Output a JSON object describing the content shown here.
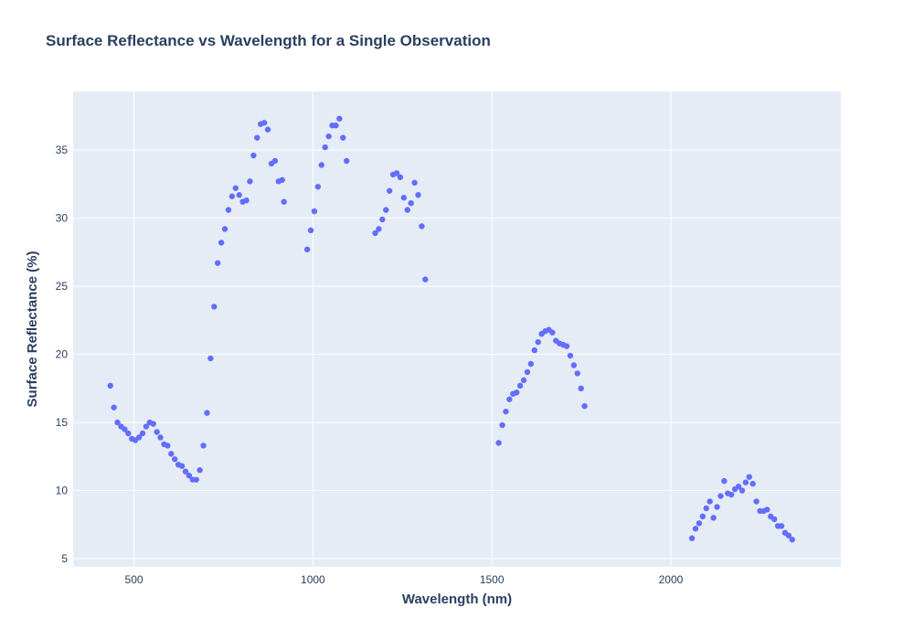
{
  "chart_data": {
    "type": "scatter",
    "title": "Surface Reflectance vs Wavelength for a Single Observation",
    "xlabel": "Wavelength (nm)",
    "ylabel": "Surface Reflectance (%)",
    "xlim": [
      330,
      2475
    ],
    "ylim": [
      4.4,
      39.3
    ],
    "xticks": [
      500,
      1000,
      1500,
      2000
    ],
    "yticks": [
      5,
      10,
      15,
      20,
      25,
      30,
      35
    ],
    "grid": true,
    "legend": "none",
    "colors": {
      "marker": "#636efa",
      "plot_bg": "#e5ecf6",
      "grid": "#ffffff",
      "text": "#2a3f5f"
    },
    "series": [
      {
        "x": [
          434,
          444,
          454,
          464,
          474,
          484,
          494,
          504,
          514,
          524,
          534,
          544,
          554,
          564,
          574,
          584,
          594,
          604,
          614,
          624,
          634,
          644,
          654,
          664,
          674,
          684,
          694,
          704,
          714,
          724,
          734,
          744,
          754,
          764,
          774,
          784,
          794,
          804,
          814,
          824,
          834,
          844,
          854,
          864,
          874,
          884,
          894,
          904,
          914,
          919,
          984,
          994,
          1004,
          1014,
          1024,
          1034,
          1044,
          1054,
          1064,
          1074,
          1084,
          1094,
          1174,
          1184,
          1194,
          1204,
          1214,
          1224,
          1234,
          1244,
          1254,
          1264,
          1274,
          1284,
          1294,
          1304,
          1314,
          1519,
          1529,
          1539,
          1549,
          1559,
          1569,
          1579,
          1589,
          1599,
          1609,
          1619,
          1629,
          1639,
          1649,
          1659,
          1669,
          1679,
          1689,
          1699,
          1709,
          1719,
          1729,
          1739,
          1749,
          1759,
          2059,
          2069,
          2079,
          2089,
          2099,
          2109,
          2119,
          2129,
          2139,
          2149,
          2159,
          2169,
          2179,
          2189,
          2199,
          2209,
          2219,
          2229,
          2239,
          2249,
          2259,
          2269,
          2279,
          2289,
          2299,
          2309,
          2319,
          2329,
          2339
        ],
        "y": [
          17.7,
          16.1,
          15.0,
          14.7,
          14.5,
          14.2,
          13.8,
          13.7,
          13.9,
          14.2,
          14.7,
          15.0,
          14.9,
          14.3,
          13.9,
          13.4,
          13.3,
          12.7,
          12.3,
          11.9,
          11.8,
          11.4,
          11.1,
          10.8,
          10.8,
          11.5,
          13.3,
          15.7,
          19.7,
          23.5,
          26.7,
          28.2,
          29.2,
          30.6,
          31.6,
          32.2,
          31.7,
          31.2,
          31.3,
          32.7,
          34.6,
          35.9,
          36.9,
          37.0,
          36.5,
          34.0,
          34.2,
          32.7,
          32.8,
          31.2,
          27.7,
          29.1,
          30.5,
          32.3,
          33.9,
          35.2,
          36.0,
          36.8,
          36.8,
          37.3,
          35.9,
          34.2,
          28.9,
          29.2,
          29.9,
          30.6,
          32.0,
          33.2,
          33.3,
          33.0,
          31.5,
          30.6,
          31.1,
          32.6,
          31.7,
          29.4,
          25.5,
          13.5,
          14.8,
          15.8,
          16.7,
          17.1,
          17.2,
          17.7,
          18.1,
          18.7,
          19.3,
          20.3,
          20.9,
          21.5,
          21.7,
          21.8,
          21.6,
          21.0,
          20.8,
          20.7,
          20.6,
          19.9,
          19.2,
          18.6,
          17.5,
          16.2,
          6.5,
          7.2,
          7.6,
          8.1,
          8.7,
          9.2,
          8.0,
          8.8,
          9.6,
          10.7,
          9.8,
          9.7,
          10.1,
          10.3,
          10.0,
          10.6,
          11.0,
          10.5,
          9.2,
          8.5,
          8.5,
          8.6,
          8.1,
          7.9,
          7.4,
          7.4,
          6.9,
          6.7,
          6.4
        ]
      }
    ]
  }
}
